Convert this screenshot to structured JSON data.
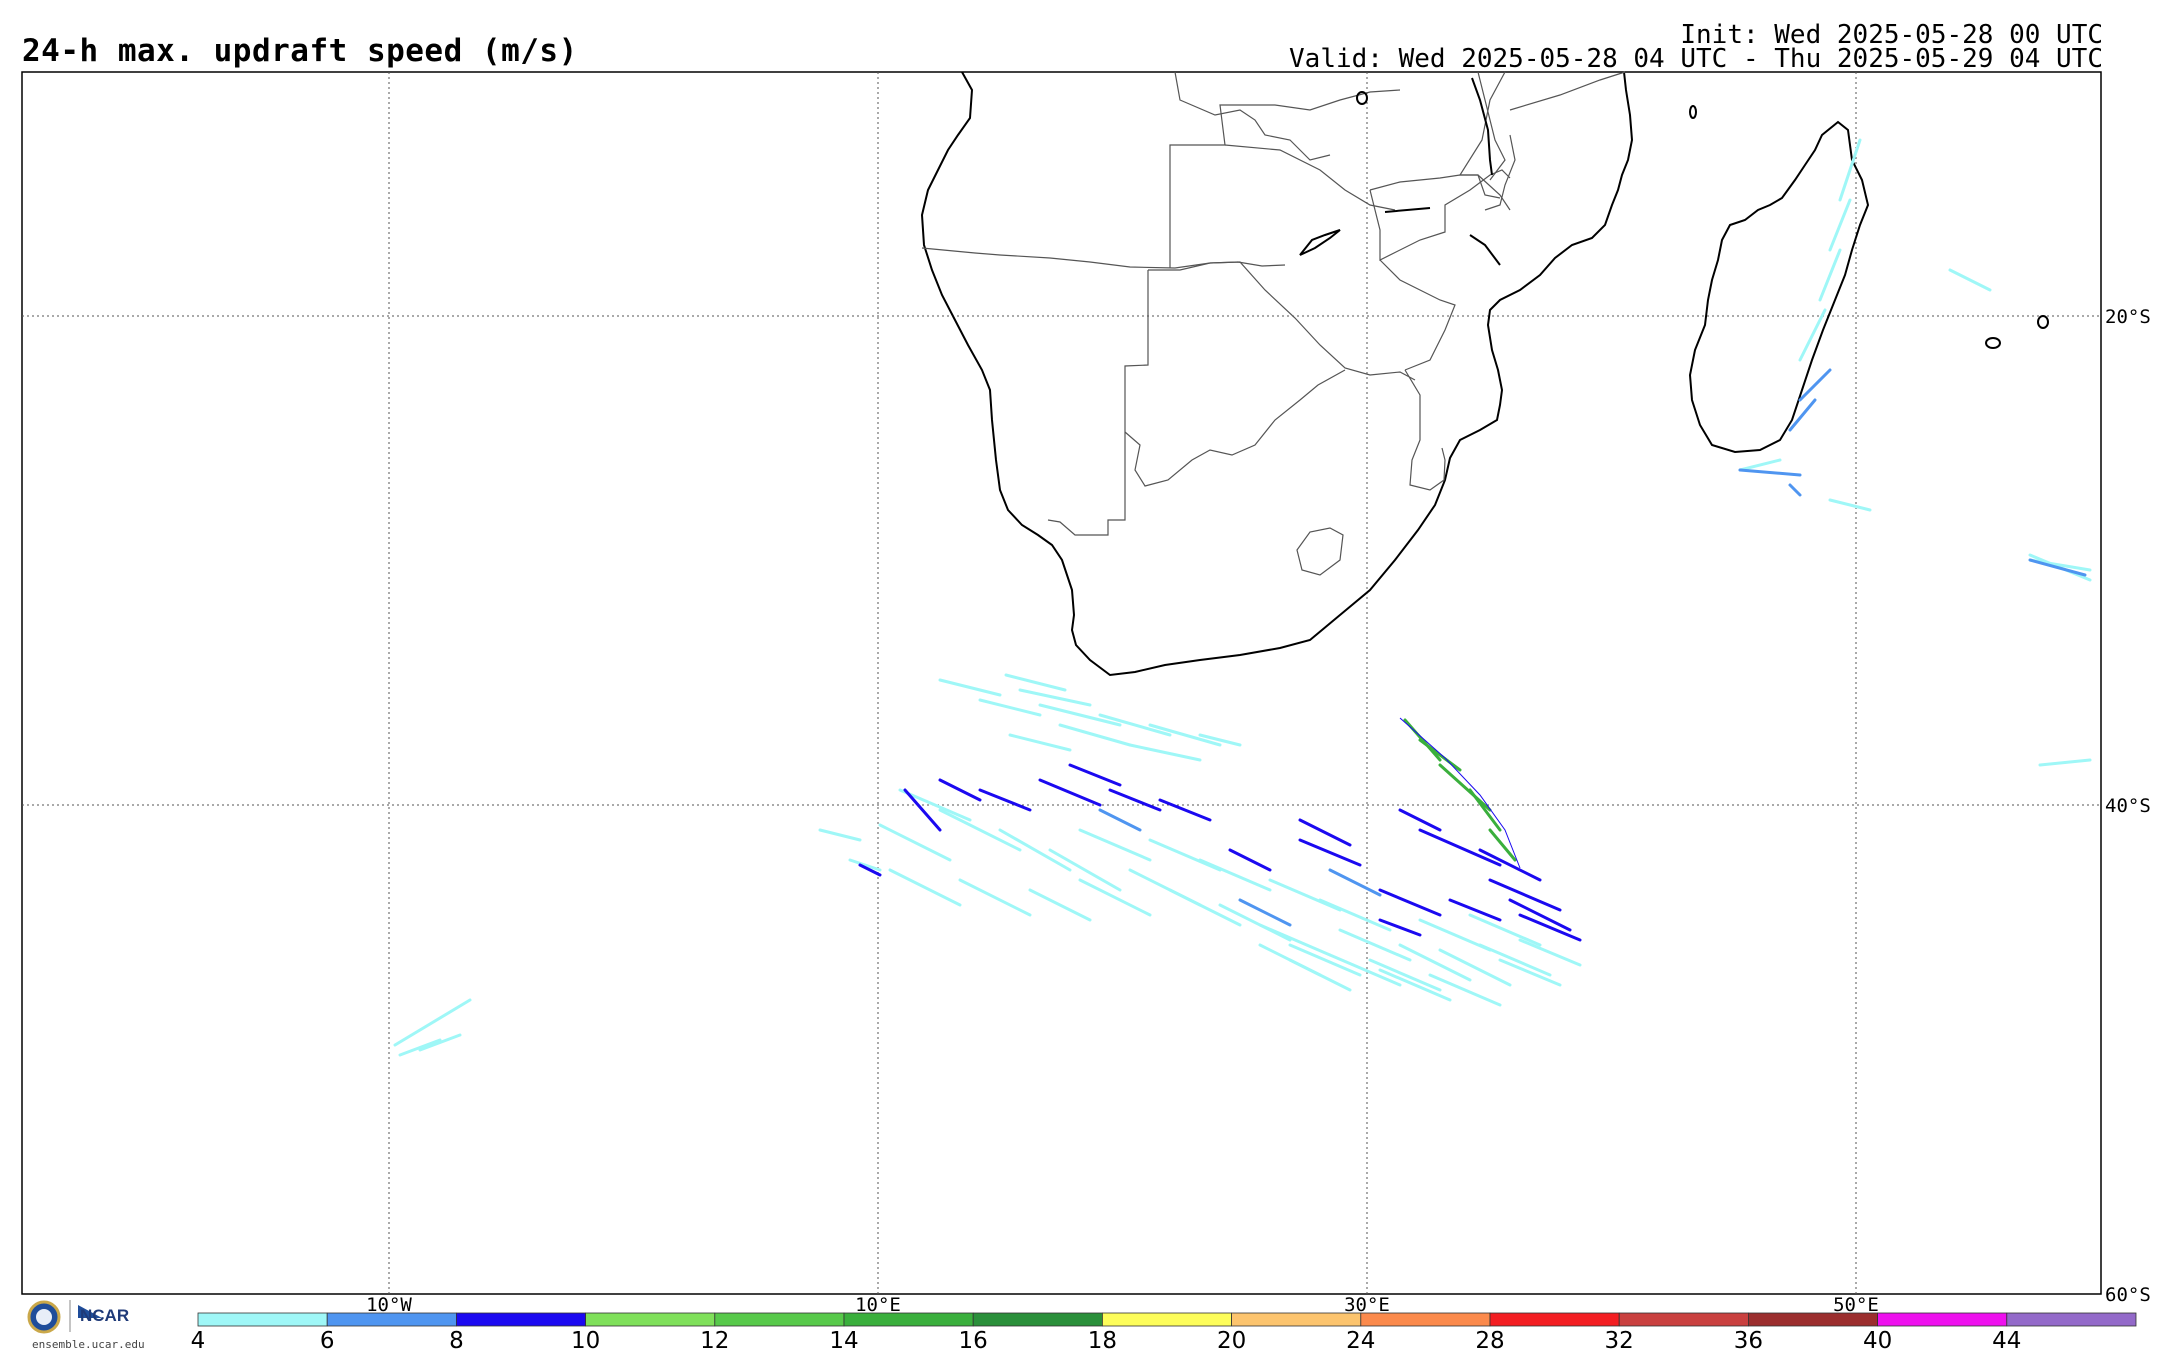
{
  "header": {
    "title": "24-h max. updraft speed (m/s)",
    "init": "Init: Wed 2025-05-28 00 UTC",
    "valid": "Valid: Wed 2025-05-28 04 UTC - Thu 2025-05-29 04 UTC"
  },
  "map": {
    "lat_labels": [
      "20°S",
      "40°S",
      "60°S"
    ],
    "lon_labels": [
      "10°W",
      "10°E",
      "30°E",
      "50°E"
    ]
  },
  "branding": {
    "logo_text": "NCAR",
    "site": "ensemble.ucar.edu"
  },
  "colorbar": {
    "ticks": [
      "4",
      "6",
      "8",
      "10",
      "12",
      "14",
      "16",
      "18",
      "20",
      "24",
      "28",
      "32",
      "36",
      "40",
      "44"
    ],
    "colors": [
      "#9ff7f7",
      "#4f95f0",
      "#1b09f0",
      "#7fe05a",
      "#57c94a",
      "#3aaf3c",
      "#2a8f3a",
      "#fdfd5a",
      "#fcc46e",
      "#fb8a4c",
      "#f31e22",
      "#c9403f",
      "#9b2e2e",
      "#ee10ee",
      "#9369c9"
    ]
  }
}
